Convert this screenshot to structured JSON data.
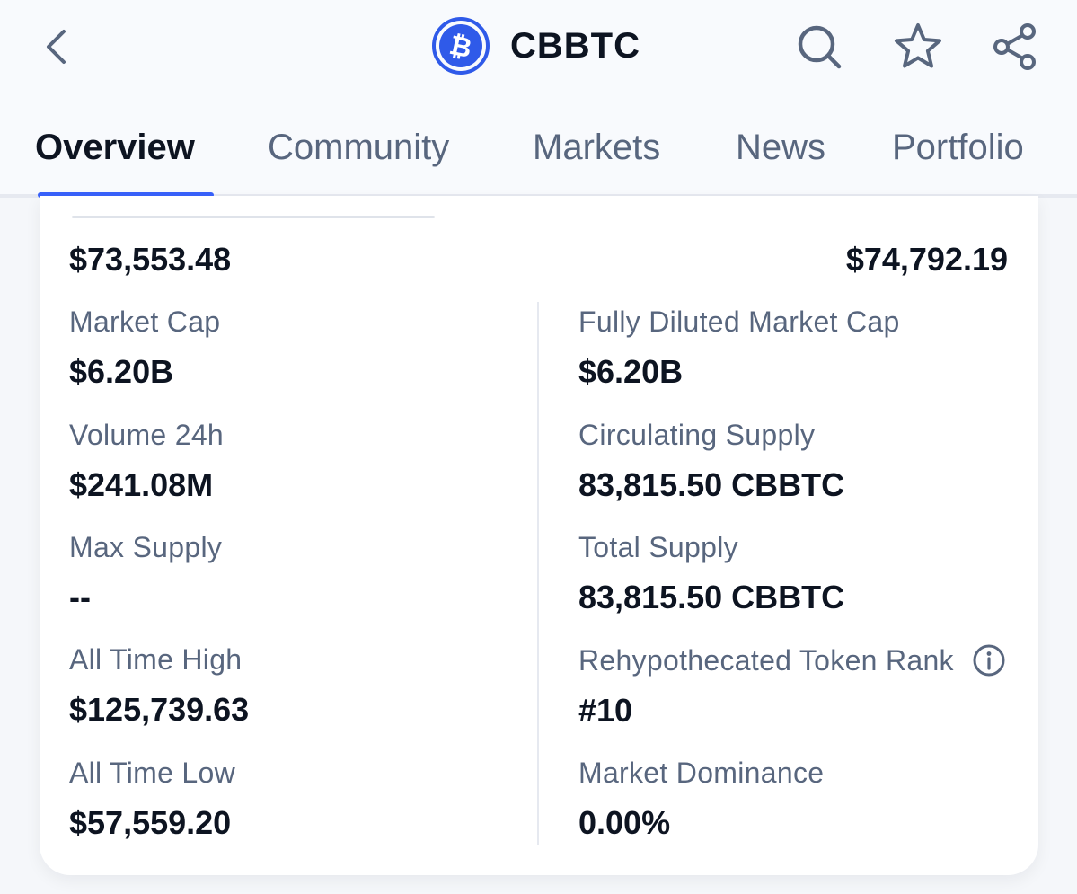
{
  "header": {
    "title": "CBBTC",
    "back_icon": "chevron-left-icon",
    "logo_icon": "bitcoin-logo-icon",
    "actions": [
      "search-icon",
      "star-icon",
      "share-icon"
    ]
  },
  "tabs": [
    {
      "label": "Overview",
      "active": true
    },
    {
      "label": "Community",
      "active": false
    },
    {
      "label": "Markets",
      "active": false
    },
    {
      "label": "News",
      "active": false
    },
    {
      "label": "Portfolio",
      "active": false
    }
  ],
  "price_range": {
    "low": "$73,553.48",
    "high": "$74,792.19"
  },
  "stats": {
    "market_cap": {
      "label": "Market Cap",
      "value": "$6.20B"
    },
    "fdv": {
      "label": "Fully Diluted Market Cap",
      "value": "$6.20B"
    },
    "volume_24h": {
      "label": "Volume 24h",
      "value": "$241.08M"
    },
    "circulating_supply": {
      "label": "Circulating Supply",
      "value": "83,815.50 CBBTC"
    },
    "max_supply": {
      "label": "Max Supply",
      "value": "--"
    },
    "total_supply": {
      "label": "Total Supply",
      "value": "83,815.50 CBBTC"
    },
    "ath": {
      "label": "All Time High",
      "value": "$125,739.63"
    },
    "rank": {
      "label": "Rehypothecated Token Rank",
      "value": "#10"
    },
    "atl": {
      "label": "All Time Low",
      "value": "$57,559.20"
    },
    "dominance": {
      "label": "Market Dominance",
      "value": "0.00%"
    }
  },
  "colors": {
    "accent": "#3861fb",
    "text_primary": "#0d1421",
    "text_secondary": "#58667e"
  }
}
